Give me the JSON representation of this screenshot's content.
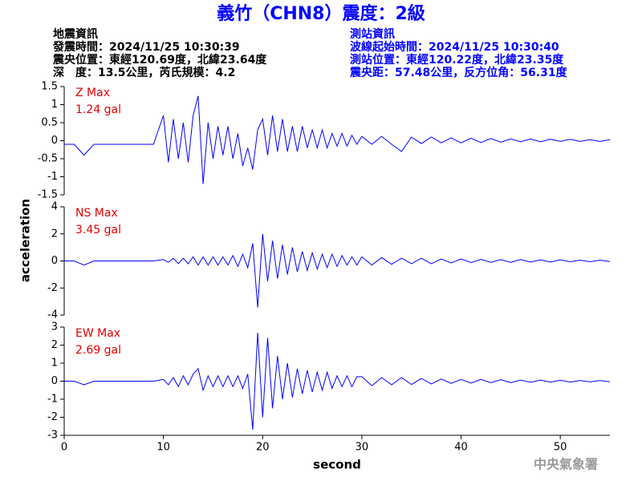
{
  "header": {
    "title": "義竹（CHN8）震度：2級",
    "left": [
      "地震資訊",
      "發震時間：2024/11/25 10:30:39",
      "震央位置：東經120.69度，北緯23.64度",
      "深　度：13.5公里，芮氏規模：4.2"
    ],
    "right": [
      "測站資訊",
      "波線起始時間：2024/11/25 10:30:40",
      "測站位置：東經120.22度，北緯23.35度",
      "震央距：57.48公里，反方位角：56.31度"
    ],
    "ylabel": "acceleration",
    "watermark": "中央氣象署"
  },
  "chart_data": [
    {
      "type": "line",
      "annotation": [
        "Z Max",
        "1.24 gal"
      ],
      "color": "#0000ff",
      "xlim": [
        0,
        55
      ],
      "ylim": [
        -1.5,
        1.5
      ],
      "yticks": [
        -1.5,
        -1,
        -0.5,
        0,
        0.5,
        1,
        1.5
      ],
      "x": [
        0,
        1,
        2,
        3,
        4,
        5,
        6,
        7,
        8,
        9,
        10,
        10.5,
        11,
        11.5,
        12,
        12.5,
        13,
        13.5,
        14,
        14.5,
        15,
        15.5,
        16,
        16.5,
        17,
        17.5,
        18,
        18.5,
        19,
        19.5,
        20,
        20.5,
        21,
        21.5,
        22,
        22.5,
        23,
        23.5,
        24,
        24.5,
        25,
        25.5,
        26,
        26.5,
        27,
        27.5,
        28,
        28.5,
        29,
        29.5,
        30,
        31,
        32,
        33,
        34,
        35,
        36,
        37,
        38,
        39,
        40,
        41,
        42,
        43,
        44,
        45,
        46,
        47,
        48,
        49,
        50,
        51,
        52,
        53,
        54,
        55
      ],
      "values": [
        -0.1,
        -0.1,
        -0.4,
        -0.1,
        -0.1,
        -0.1,
        -0.1,
        -0.1,
        -0.1,
        -0.1,
        0.7,
        -0.6,
        0.6,
        -0.5,
        0.5,
        -0.6,
        0.7,
        1.24,
        -1.2,
        0.5,
        -0.5,
        0.4,
        -0.4,
        0.4,
        -0.5,
        0.2,
        -0.7,
        -0.2,
        -0.8,
        0.3,
        0.6,
        -0.4,
        0.7,
        -0.3,
        0.6,
        -0.3,
        0.4,
        -0.3,
        0.4,
        -0.2,
        0.3,
        -0.2,
        0.3,
        -0.2,
        0.2,
        -0.15,
        0.2,
        -0.15,
        0.15,
        -0.1,
        0.12,
        -0.1,
        0.12,
        -0.1,
        -0.3,
        0.1,
        -0.08,
        0.1,
        -0.06,
        0.08,
        -0.06,
        0.07,
        -0.05,
        0.06,
        -0.04,
        0.05,
        -0.03,
        0.05,
        -0.03,
        0.04,
        -0.02,
        0.04,
        -0.02,
        0.03,
        -0.02,
        0.03
      ]
    },
    {
      "type": "line",
      "annotation": [
        "NS Max",
        "3.45 gal"
      ],
      "color": "#0000ff",
      "xlim": [
        0,
        55
      ],
      "ylim": [
        -4,
        4
      ],
      "yticks": [
        -4,
        -2,
        0,
        2,
        4
      ],
      "x": [
        0,
        1,
        2,
        3,
        4,
        5,
        6,
        7,
        8,
        9,
        10,
        10.5,
        11,
        11.5,
        12,
        12.5,
        13,
        13.5,
        14,
        14.5,
        15,
        15.5,
        16,
        16.5,
        17,
        17.5,
        18,
        18.5,
        19,
        19.5,
        20,
        20.5,
        21,
        21.5,
        22,
        22.5,
        23,
        23.5,
        24,
        24.5,
        25,
        25.5,
        26,
        26.5,
        27,
        27.5,
        28,
        28.5,
        29,
        29.5,
        30,
        31,
        32,
        33,
        34,
        35,
        36,
        37,
        38,
        39,
        40,
        41,
        42,
        43,
        44,
        45,
        46,
        47,
        48,
        49,
        50,
        51,
        52,
        53,
        54,
        55
      ],
      "values": [
        0,
        0,
        -0.3,
        0,
        0,
        0,
        0,
        0,
        0,
        0,
        0.1,
        -0.1,
        0.2,
        -0.2,
        0.2,
        -0.2,
        0.3,
        -0.3,
        0.3,
        -0.3,
        0.3,
        -0.3,
        0.3,
        -0.3,
        0.4,
        -0.4,
        0.5,
        -0.5,
        1.3,
        -3.45,
        2.0,
        -1.5,
        1.5,
        -1.3,
        1.2,
        -1.0,
        1.0,
        -0.8,
        0.7,
        -0.7,
        0.6,
        -0.6,
        0.5,
        -0.5,
        0.5,
        -0.4,
        0.4,
        -0.3,
        0.3,
        -0.3,
        0.3,
        -0.3,
        0.25,
        -0.25,
        0.2,
        -0.2,
        0.2,
        -0.2,
        0.15,
        -0.15,
        0.15,
        -0.12,
        0.12,
        -0.1,
        0.1,
        -0.1,
        0.1,
        -0.08,
        0.08,
        -0.08,
        0.08,
        -0.06,
        0.06,
        -0.06,
        0.06,
        -0.05
      ]
    },
    {
      "type": "line",
      "annotation": [
        "EW Max",
        "2.69 gal"
      ],
      "color": "#0000ff",
      "xlim": [
        0,
        55
      ],
      "ylim": [
        -3,
        3
      ],
      "yticks": [
        -3,
        -2,
        -1,
        0,
        1,
        2,
        3
      ],
      "xticks": [
        0,
        10,
        20,
        30,
        40,
        50
      ],
      "xlabel": "second",
      "x": [
        0,
        1,
        2,
        3,
        4,
        5,
        6,
        7,
        8,
        9,
        10,
        10.5,
        11,
        11.5,
        12,
        12.5,
        13,
        13.5,
        14,
        14.5,
        15,
        15.5,
        16,
        16.5,
        17,
        17.5,
        18,
        18.5,
        19,
        19.5,
        20,
        20.5,
        21,
        21.5,
        22,
        22.5,
        23,
        23.5,
        24,
        24.5,
        25,
        25.5,
        26,
        26.5,
        27,
        27.5,
        28,
        28.5,
        29,
        29.5,
        30,
        31,
        32,
        33,
        34,
        35,
        36,
        37,
        38,
        39,
        40,
        41,
        42,
        43,
        44,
        45,
        46,
        47,
        48,
        49,
        50,
        51,
        52,
        53,
        54,
        55
      ],
      "values": [
        0,
        0,
        -0.2,
        0,
        0,
        0,
        0,
        0,
        0,
        0,
        0.1,
        -0.2,
        0.2,
        -0.3,
        0.3,
        -0.2,
        0.4,
        0.7,
        -0.5,
        0.3,
        -0.3,
        0.3,
        -0.3,
        0.3,
        -0.3,
        0.3,
        -0.4,
        0.4,
        -2.69,
        2.69,
        -2.0,
        2.4,
        -1.5,
        1.4,
        -1.0,
        1.0,
        -0.9,
        0.7,
        -0.7,
        0.6,
        -0.6,
        0.5,
        -0.5,
        0.5,
        -0.4,
        0.3,
        -0.3,
        0.3,
        -0.3,
        0.25,
        0.25,
        -0.25,
        0.2,
        -0.2,
        0.2,
        -0.18,
        0.15,
        -0.15,
        0.12,
        -0.12,
        0.1,
        -0.1,
        0.1,
        -0.08,
        0.08,
        -0.08,
        0.06,
        -0.06,
        0.06,
        -0.05,
        0.05,
        -0.05,
        0.04,
        -0.04,
        0.04,
        -0.03
      ]
    }
  ]
}
